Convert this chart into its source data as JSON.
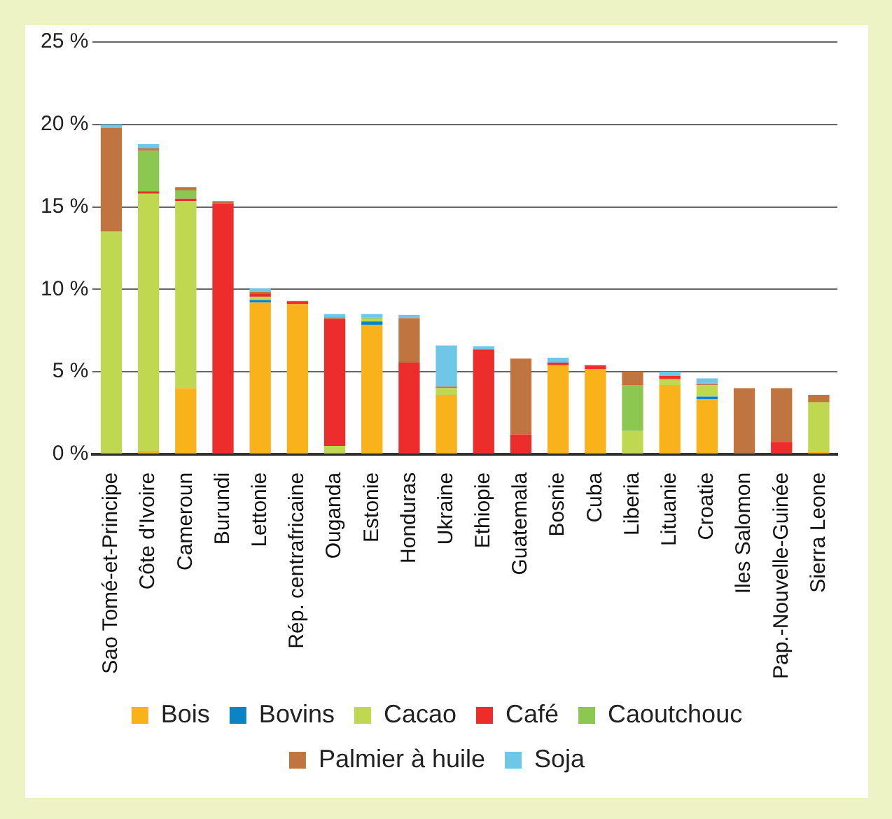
{
  "chart_data": {
    "type": "bar",
    "stacked": true,
    "categories": [
      "Sao Tomé-et-Principe",
      "Côte d'Ivoire",
      "Cameroun",
      "Burundi",
      "Lettonie",
      "Rép. centrafricaine",
      "Ouganda",
      "Estonie",
      "Honduras",
      "Ukraine",
      "Ethiopie",
      "Guatemala",
      "Bosnie",
      "Cuba",
      "Liberia",
      "Lituanie",
      "Croatie",
      "Iles Salomon",
      "Pap.-Nouvelle-Guinée",
      "Sierra Leone"
    ],
    "series": [
      {
        "name": "Bois",
        "color": "#f9b21a",
        "values": [
          null,
          0.2,
          4.0,
          null,
          9.2,
          9.1,
          null,
          7.85,
          null,
          3.6,
          null,
          null,
          5.4,
          5.15,
          null,
          4.2,
          3.35,
          null,
          null,
          0.15
        ]
      },
      {
        "name": "Bovins",
        "color": "#0b84c6",
        "values": [
          null,
          null,
          null,
          null,
          0.15,
          null,
          null,
          0.2,
          null,
          null,
          null,
          null,
          null,
          null,
          null,
          null,
          0.15,
          null,
          null,
          null
        ]
      },
      {
        "name": "Cacao",
        "color": "#bfd84f",
        "values": [
          13.5,
          15.6,
          11.35,
          null,
          0.2,
          null,
          0.5,
          0.15,
          null,
          0.4,
          null,
          null,
          null,
          null,
          1.4,
          0.35,
          0.7,
          null,
          null,
          3.0
        ]
      },
      {
        "name": "Café",
        "color": "#ec2d2b",
        "values": [
          null,
          0.15,
          0.15,
          15.2,
          0.2,
          0.15,
          7.7,
          null,
          5.55,
          null,
          6.35,
          1.2,
          0.15,
          0.25,
          null,
          0.2,
          null,
          null,
          0.75,
          null
        ]
      },
      {
        "name": "Caoutchouc",
        "color": "#8cc752",
        "values": [
          null,
          2.45,
          0.5,
          null,
          null,
          null,
          null,
          0.1,
          null,
          null,
          null,
          null,
          null,
          null,
          2.8,
          null,
          null,
          null,
          null,
          null
        ]
      },
      {
        "name": "Palmier à huile",
        "color": "#c07440",
        "values": [
          6.3,
          0.15,
          0.2,
          0.15,
          0.1,
          0.05,
          0.1,
          null,
          2.7,
          0.1,
          null,
          4.6,
          null,
          null,
          0.8,
          null,
          0.05,
          4.0,
          3.25,
          0.45
        ]
      },
      {
        "name": "Soja",
        "color": "#6fc7e8",
        "values": [
          0.2,
          0.25,
          null,
          null,
          0.2,
          null,
          0.2,
          0.2,
          0.2,
          2.5,
          0.2,
          null,
          0.3,
          null,
          null,
          0.25,
          0.35,
          null,
          null,
          null
        ]
      }
    ],
    "ylim": [
      0,
      25
    ],
    "yticks": [
      {
        "value": 0,
        "label": "0 %"
      },
      {
        "value": 5,
        "label": "5 %"
      },
      {
        "value": 10,
        "label": "10 %"
      },
      {
        "value": 15,
        "label": "15 %"
      },
      {
        "value": 20,
        "label": "20 %"
      },
      {
        "value": 25,
        "label": "25 %"
      }
    ],
    "grid": "y",
    "legend": "bottom"
  }
}
